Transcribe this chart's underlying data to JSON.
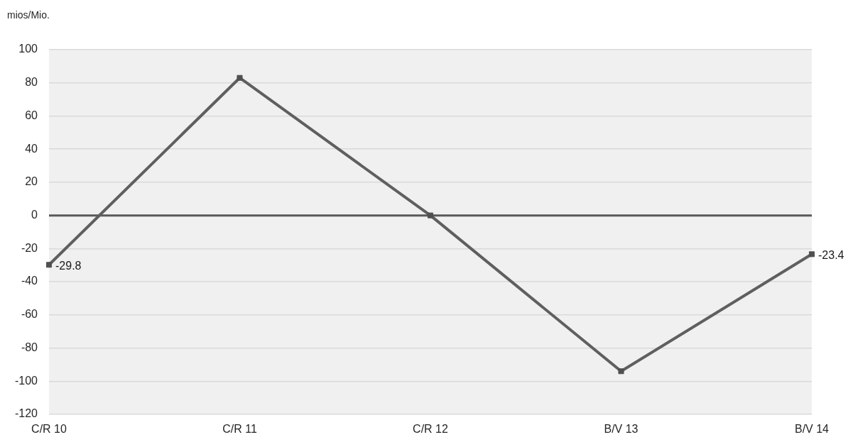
{
  "chart_data": {
    "type": "line",
    "ylabel": "mios/Mio.",
    "categories": [
      "C/R 10",
      "C/R 11",
      "C/R 12",
      "B/V 13",
      "B/V 14"
    ],
    "series": [
      {
        "color": "#5f5f5f",
        "values": [
          -29.8,
          83,
          0,
          -94,
          -23.4
        ],
        "value_labels": [
          "-29.8",
          null,
          null,
          null,
          "-23.4"
        ]
      }
    ],
    "ylim": [
      -120,
      100
    ],
    "yticks": [
      -120,
      -100,
      -80,
      -60,
      -40,
      -20,
      0,
      20,
      40,
      60,
      80,
      100
    ],
    "ref_lines": [
      {
        "axis": "y",
        "value": 0,
        "color": "#595959"
      }
    ],
    "grid": "y",
    "marker": "square",
    "line_style": "solid"
  }
}
